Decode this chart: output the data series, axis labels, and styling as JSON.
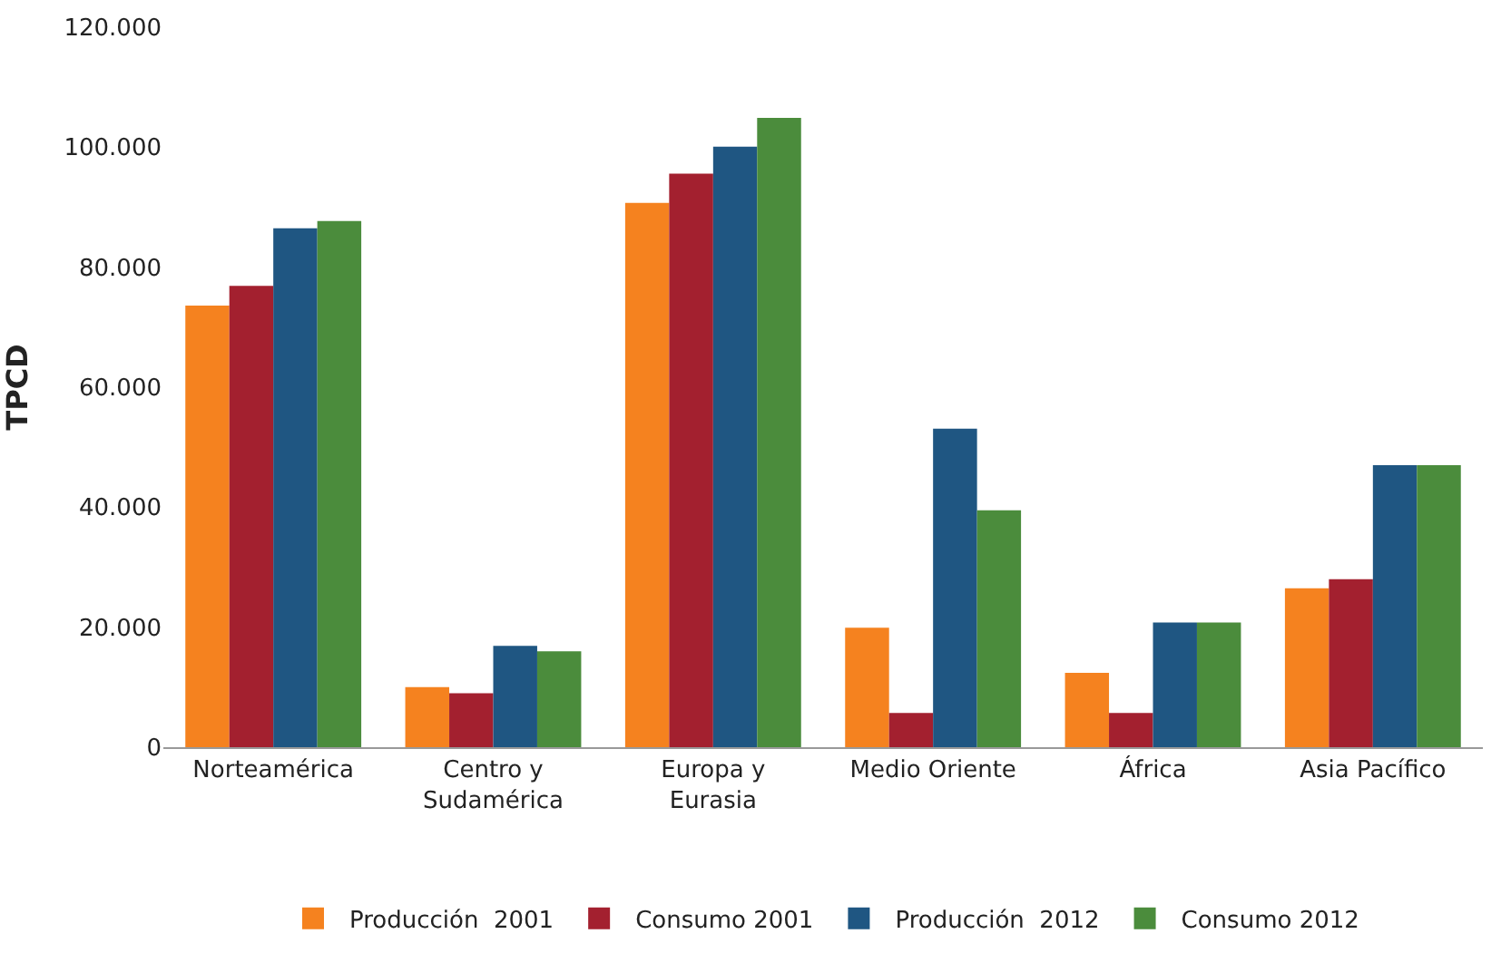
{
  "chart_data": {
    "type": "bar",
    "ylabel": "TPCD",
    "categories": [
      "Norteamérica",
      "Centro y\nSudamérica",
      "Europa y\nEurasia",
      "Medio Oriente",
      "África",
      "Asia Pacífico"
    ],
    "series": [
      {
        "name": "Producción  2001",
        "color": "#f5821f",
        "values": [
          73600,
          10000,
          90700,
          19900,
          12400,
          26500
        ]
      },
      {
        "name": "Consumo 2001",
        "color": "#a3202f",
        "values": [
          76900,
          9000,
          95600,
          5700,
          5700,
          28000
        ]
      },
      {
        "name": "Producción  2012",
        "color": "#1f5682",
        "values": [
          86500,
          16900,
          100100,
          53100,
          20800,
          47000
        ]
      },
      {
        "name": "Consumo 2012",
        "color": "#4b8c3c",
        "values": [
          87700,
          16000,
          104900,
          39500,
          20800,
          47000
        ]
      }
    ],
    "ylim": [
      0,
      120000
    ],
    "yticks": [
      0,
      {
        "value": 20000,
        "label": "20.000"
      },
      {
        "value": 40000,
        "label": "40.000"
      },
      {
        "value": 60000,
        "label": "60.000"
      },
      {
        "value": 80000,
        "label": "80.000"
      },
      {
        "value": 100000,
        "label": "100.000"
      },
      {
        "value": 120000,
        "label": "120.000"
      }
    ],
    "legend": "bottom"
  }
}
